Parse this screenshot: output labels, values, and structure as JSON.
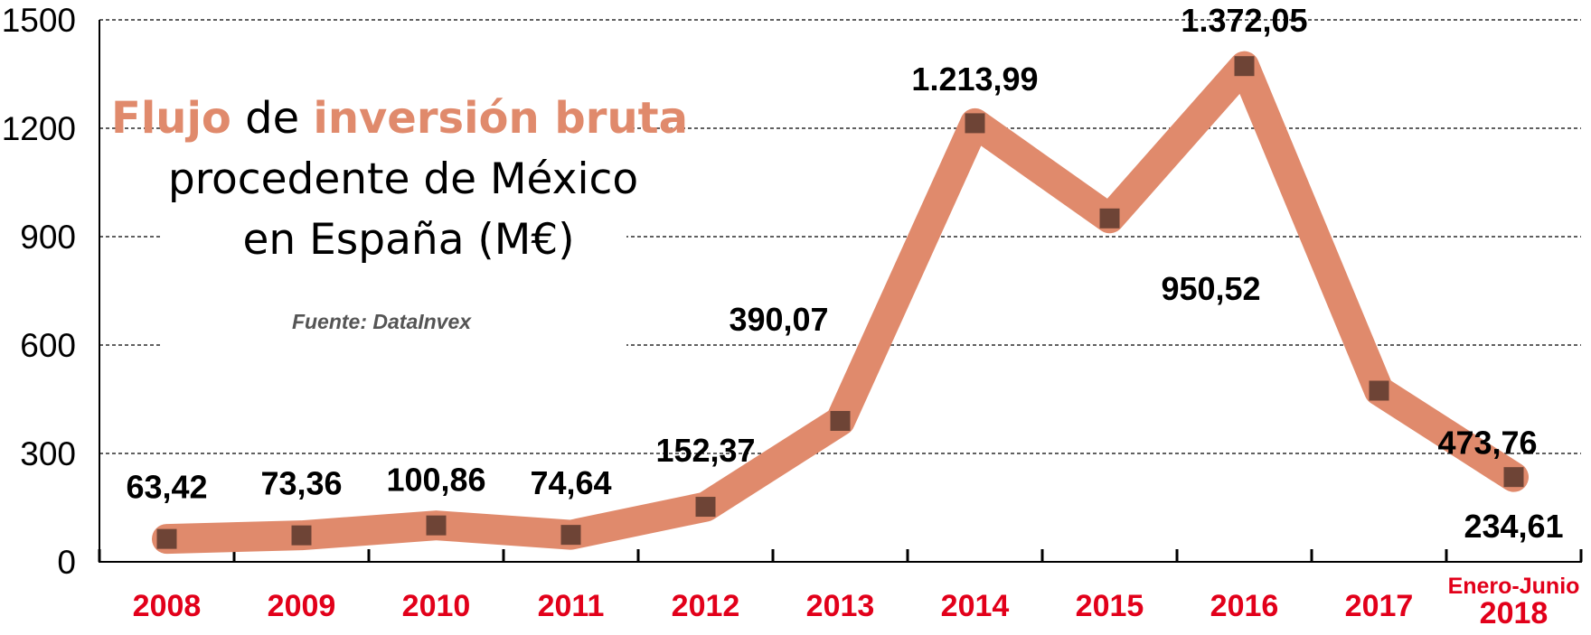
{
  "chart_data": {
    "type": "line",
    "title_parts": [
      {
        "text": "Flujo",
        "highlight": true
      },
      {
        "text": " de ",
        "highlight": false
      },
      {
        "text": "inversión bruta",
        "highlight": true
      }
    ],
    "title_line2": "procedente de México",
    "title_line3": "en España (M€)",
    "source": "Fuente: DataInvex",
    "categories": [
      "2008",
      "2009",
      "2010",
      "2011",
      "2012",
      "2013",
      "2014",
      "2015",
      "2016",
      "2017",
      "2018"
    ],
    "last_category_prefix": "Enero-Junio",
    "values": [
      63.42,
      73.36,
      100.86,
      74.64,
      152.37,
      390.07,
      1213.99,
      950.52,
      1372.05,
      473.76,
      234.61
    ],
    "data_labels": [
      "63,42",
      "73,36",
      "100,86",
      "74,64",
      "152,37",
      "390,07",
      "1.213,99",
      "950,52",
      "1.372,05",
      "473,76",
      "234,61"
    ],
    "yticks": [
      "0",
      "300",
      "600",
      "900",
      "1200",
      "1500"
    ],
    "ylim": [
      0,
      1500
    ],
    "grid": "horizontal dashed",
    "colors": {
      "line": "#e08a6c",
      "marker": "#6e4436",
      "category_labels": "#e2001a",
      "title_highlight": "#e08a6c"
    }
  }
}
